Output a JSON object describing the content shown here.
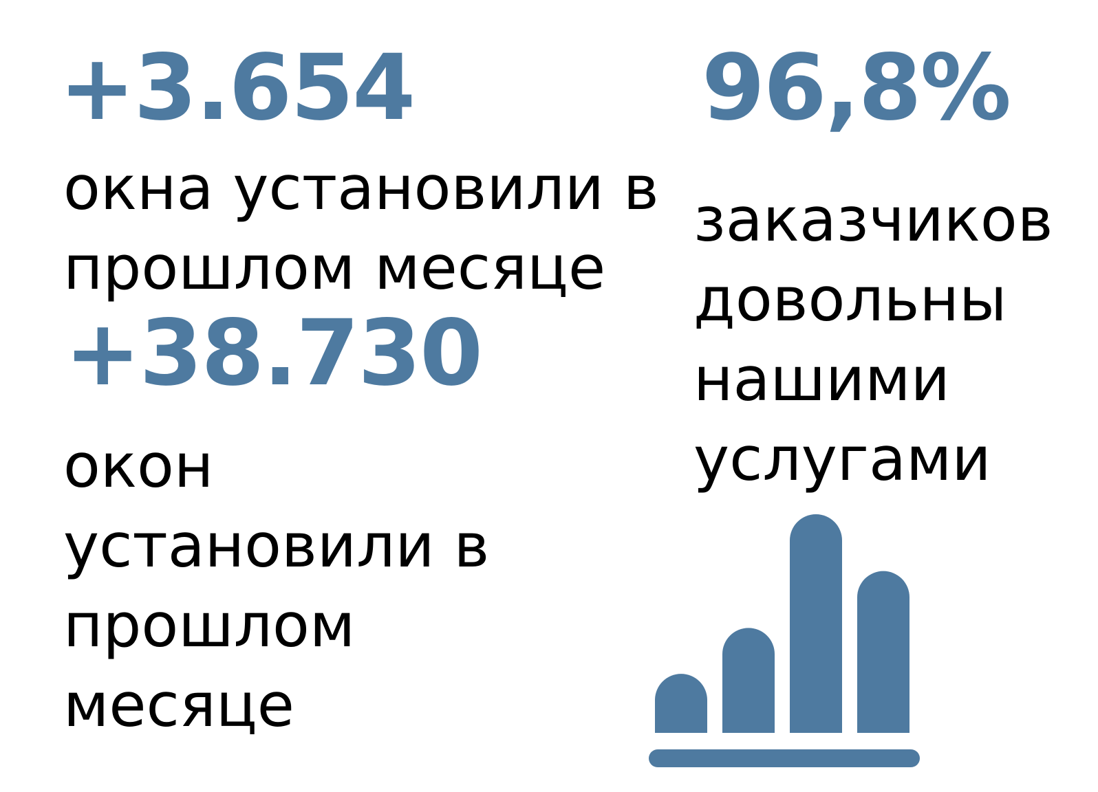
{
  "colors": {
    "accent": "#4e7aa0",
    "text": "#000000",
    "background": "#ffffff"
  },
  "stats": [
    {
      "value": "+3.654",
      "caption_lines": [
        "окна установили в",
        "прошлом месяце"
      ]
    },
    {
      "value": "+38.730",
      "caption_lines": [
        "окон",
        "установили в",
        "прошлом",
        "месяце"
      ]
    },
    {
      "value": "96,8%",
      "caption_lines": [
        "заказчиков",
        "довольны",
        "нашими",
        "услугами"
      ]
    }
  ],
  "icon": {
    "name": "bar-chart-icon",
    "bar_levels": [
      0.27,
      0.48,
      1.0,
      0.74
    ]
  }
}
